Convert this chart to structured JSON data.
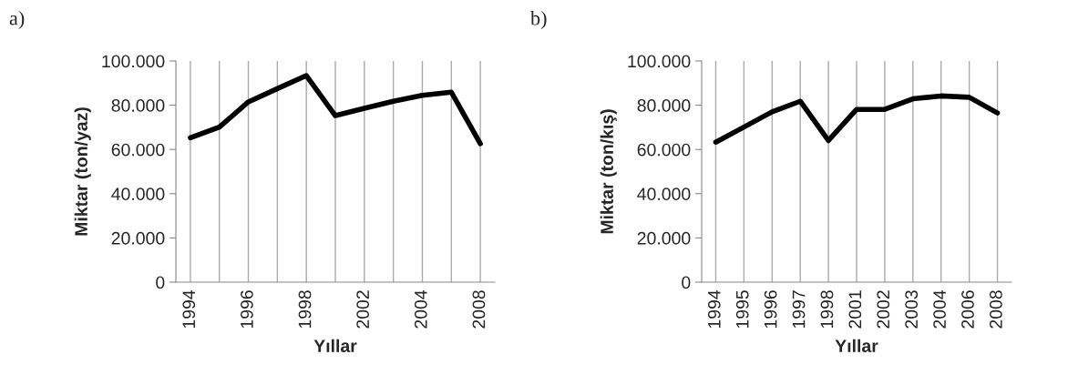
{
  "chart_data": [
    {
      "type": "line",
      "annotations": [
        "a)"
      ],
      "xlabel": "Yıllar",
      "ylabel": "Miktar (ton/yaz)",
      "categories": [
        "1994",
        null,
        "1996",
        null,
        "1998",
        null,
        "2002",
        null,
        "2004",
        null,
        "2008"
      ],
      "series": [
        {
          "color": "#000000",
          "values": [
            65300,
            70100,
            81500,
            87500,
            93400,
            75300,
            78600,
            81800,
            84500,
            85900,
            62600
          ]
        }
      ],
      "ylim": [
        0,
        100000
      ],
      "yticks": [
        {
          "value": 0,
          "label": "0"
        },
        {
          "value": 20000,
          "label": "20.000"
        },
        {
          "value": 40000,
          "label": "40.000"
        },
        {
          "value": 60000,
          "label": "60.000"
        },
        {
          "value": 80000,
          "label": "80.000"
        },
        {
          "value": 100000,
          "label": "100.000"
        }
      ],
      "grid": "x",
      "line_style": "solid",
      "marker": "none"
    },
    {
      "type": "line",
      "annotations": [
        "b)"
      ],
      "xlabel": "Yıllar",
      "ylabel": "Miktar (ton/kış)",
      "categories": [
        "1994",
        "1995",
        "1996",
        "1997",
        "1998",
        "2001",
        "2002",
        "2003",
        "2004",
        "2006",
        "2008"
      ],
      "series": [
        {
          "color": "#000000",
          "values": [
            63300,
            70100,
            77000,
            81800,
            64000,
            78100,
            78100,
            82900,
            84200,
            83600,
            76500
          ]
        }
      ],
      "ylim": [
        0,
        100000
      ],
      "yticks": [
        {
          "value": 0,
          "label": "0"
        },
        {
          "value": 20000,
          "label": "20.000"
        },
        {
          "value": 40000,
          "label": "40.000"
        },
        {
          "value": 60000,
          "label": "60.000"
        },
        {
          "value": 80000,
          "label": "80.000"
        },
        {
          "value": 100000,
          "label": "100.000"
        }
      ],
      "grid": "x",
      "line_style": "solid",
      "marker": "none"
    }
  ]
}
